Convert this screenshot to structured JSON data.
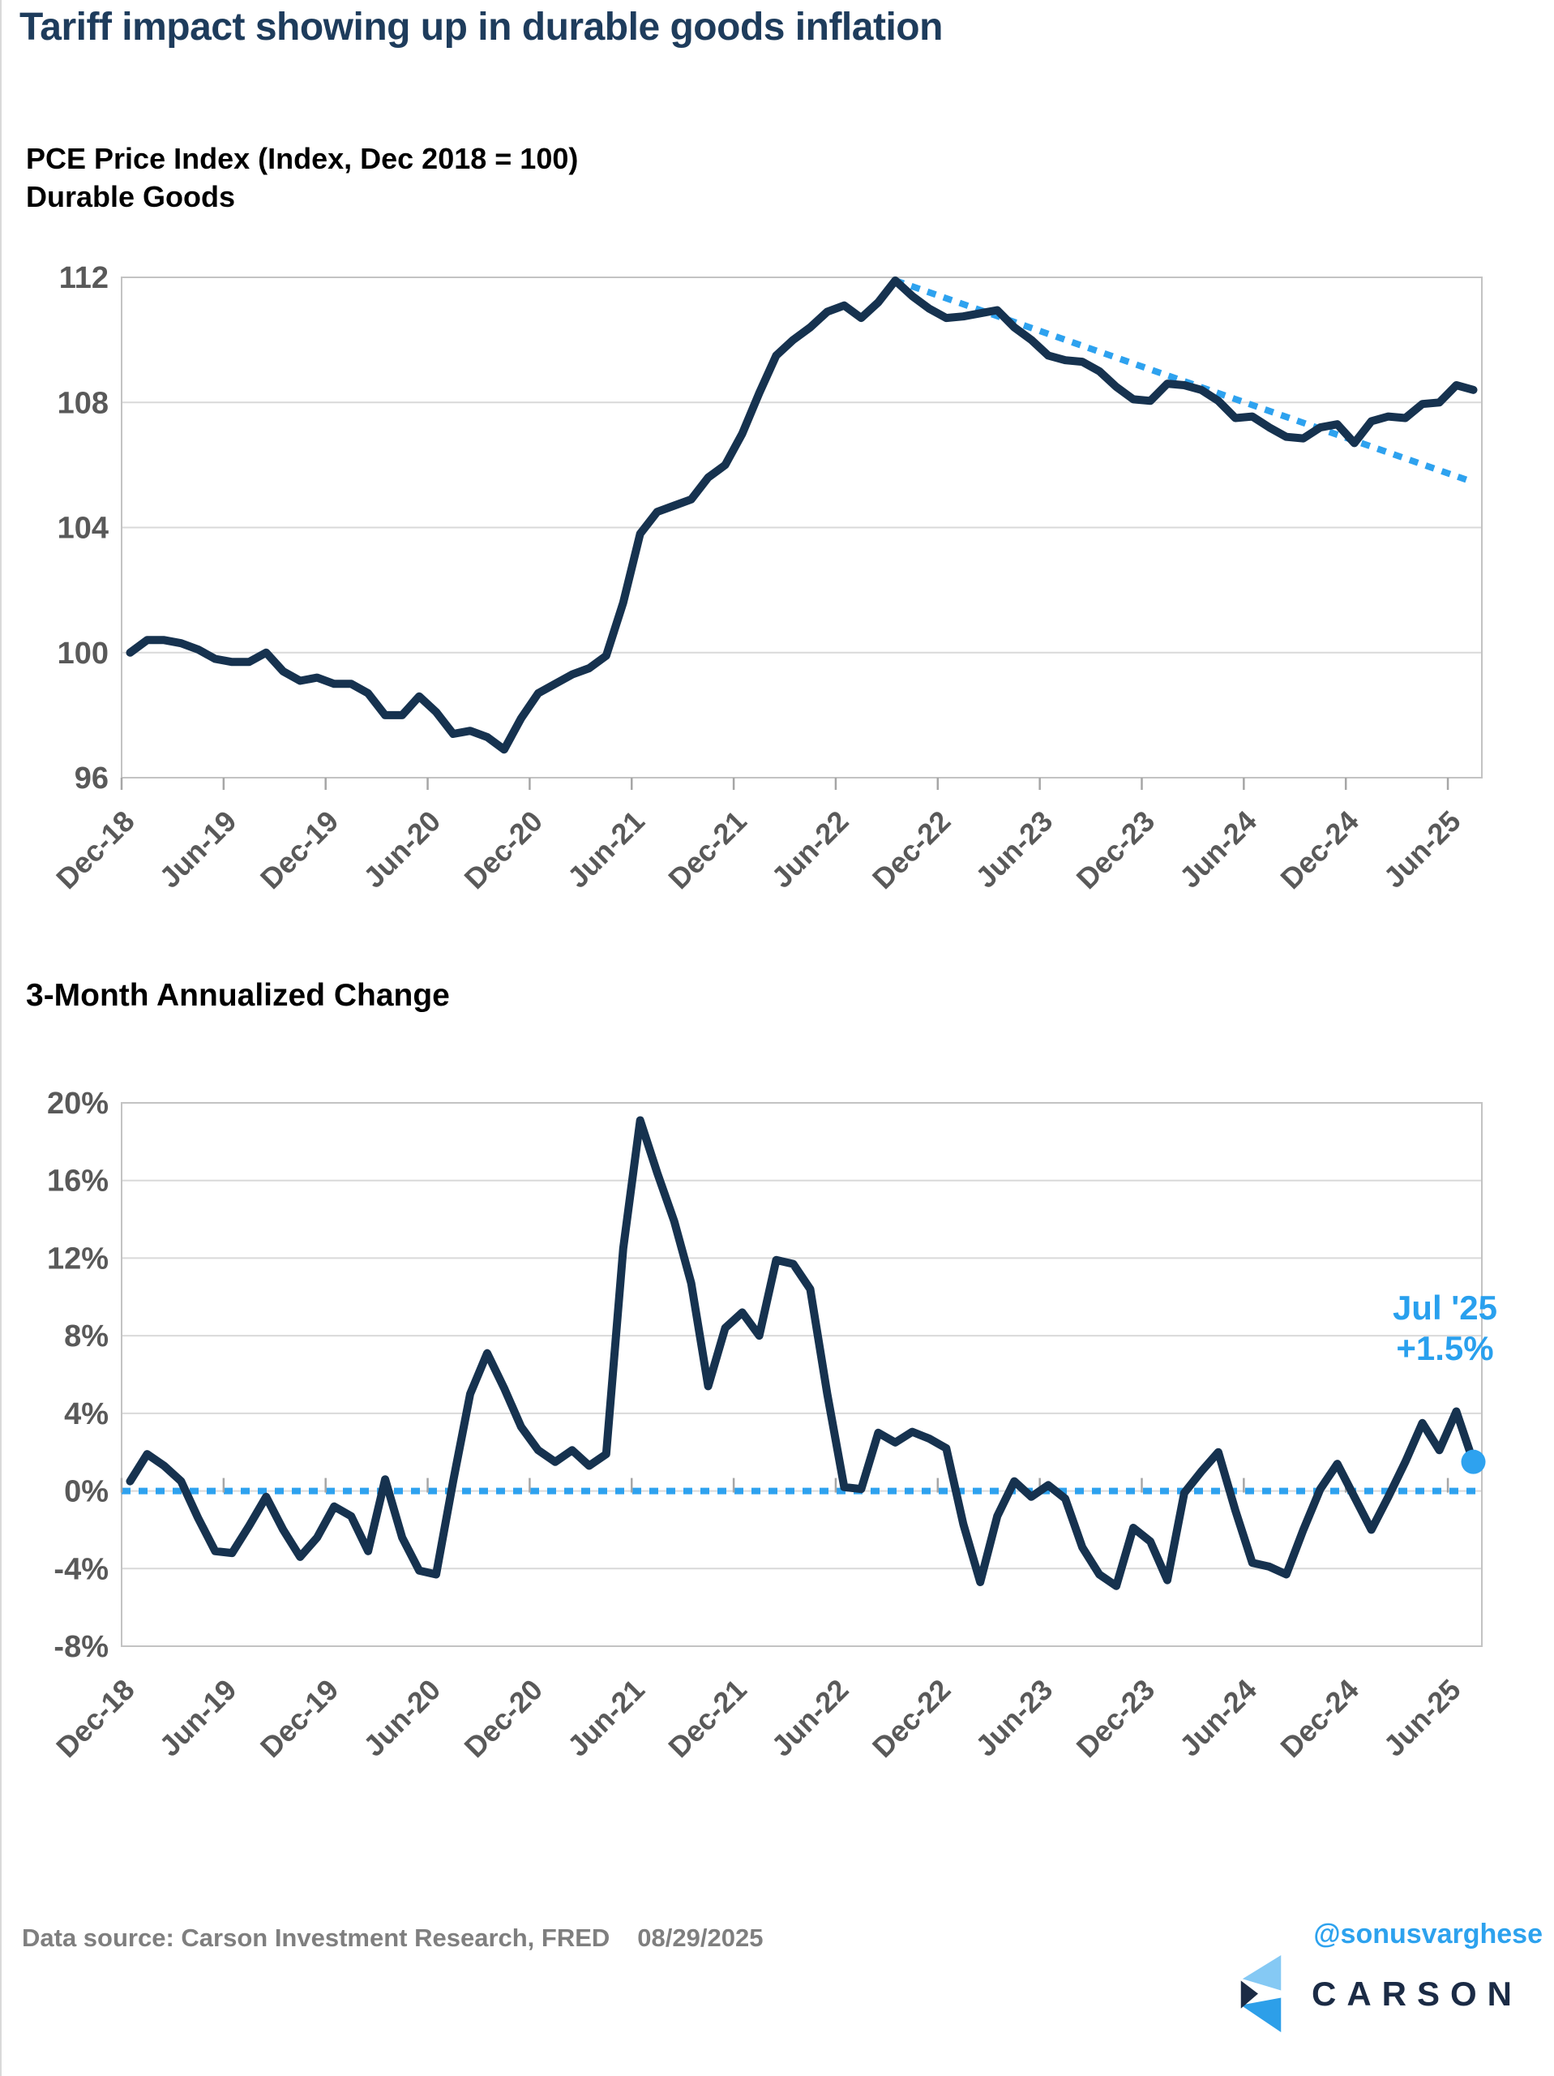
{
  "page": {
    "title": "Tariff impact showing up in durable goods inflation"
  },
  "colors": {
    "title_navy": "#1e3c5c",
    "series_line": "#16324f",
    "dotted_blue": "#2ea2ef",
    "annotation_blue": "#29a0ee",
    "axis_text_gray": "#595959",
    "footer_gray": "#7f7f7f",
    "gridline_gray": "#d9d9d9",
    "plot_border_gray": "#c3c3c3",
    "tick_gray": "#a6a6a6",
    "logo_light_blue": "#85c9f4",
    "logo_bright_blue": "#2d9fe9",
    "logo_navy": "#1b2b45"
  },
  "footer": {
    "source": "Data source: Carson Investment Research, FRED",
    "date": "08/29/2025",
    "handle": "@sonusvarghese"
  },
  "logo": {
    "wordmark": "CARSON"
  },
  "chart_data": [
    {
      "type": "line",
      "title_line1": "PCE Price Index (Index, Dec 2018 = 100)",
      "title_line2": "Durable Goods",
      "ylim": [
        96,
        112
      ],
      "yticks": [
        {
          "value": 112,
          "label": "112"
        },
        {
          "value": 108,
          "label": "108"
        },
        {
          "value": 104,
          "label": "104"
        },
        {
          "value": 100,
          "label": "100"
        },
        {
          "value": 96,
          "label": "96"
        }
      ],
      "xtick_step": 6,
      "xtick_labels": [
        "Dec-18",
        "Jun-19",
        "Dec-19",
        "Jun-20",
        "Dec-20",
        "Jun-21",
        "Dec-21",
        "Jun-22",
        "Dec-22",
        "Jun-23",
        "Dec-23",
        "Jun-24",
        "Dec-24",
        "Jun-25"
      ],
      "categories": [
        "Dec-18",
        "Jan-19",
        "Feb-19",
        "Mar-19",
        "Apr-19",
        "May-19",
        "Jun-19",
        "Jul-19",
        "Aug-19",
        "Sep-19",
        "Oct-19",
        "Nov-19",
        "Dec-19",
        "Jan-20",
        "Feb-20",
        "Mar-20",
        "Apr-20",
        "May-20",
        "Jun-20",
        "Jul-20",
        "Aug-20",
        "Sep-20",
        "Oct-20",
        "Nov-20",
        "Dec-20",
        "Jan-21",
        "Feb-21",
        "Mar-21",
        "Apr-21",
        "May-21",
        "Jun-21",
        "Jul-21",
        "Aug-21",
        "Sep-21",
        "Oct-21",
        "Nov-21",
        "Dec-21",
        "Jan-22",
        "Feb-22",
        "Mar-22",
        "Apr-22",
        "May-22",
        "Jun-22",
        "Jul-22",
        "Aug-22",
        "Sep-22",
        "Oct-22",
        "Nov-22",
        "Dec-22",
        "Jan-23",
        "Feb-23",
        "Mar-23",
        "Apr-23",
        "May-23",
        "Jun-23",
        "Jul-23",
        "Aug-23",
        "Sep-23",
        "Oct-23",
        "Nov-23",
        "Dec-23",
        "Jan-24",
        "Feb-24",
        "Mar-24",
        "Apr-24",
        "May-24",
        "Jun-24",
        "Jul-24",
        "Aug-24",
        "Sep-24",
        "Oct-24",
        "Nov-24",
        "Dec-24",
        "Jan-25",
        "Feb-25",
        "Mar-25",
        "Apr-25",
        "May-25",
        "Jun-25",
        "Jul-25"
      ],
      "values": [
        100.0,
        100.4,
        100.4,
        100.3,
        100.1,
        99.8,
        99.7,
        99.7,
        100.0,
        99.4,
        99.1,
        99.2,
        99.0,
        99.0,
        98.7,
        98.0,
        98.0,
        98.6,
        98.1,
        97.4,
        97.5,
        97.3,
        96.9,
        97.9,
        98.7,
        99.0,
        99.3,
        99.5,
        99.9,
        101.6,
        103.8,
        104.5,
        104.7,
        104.9,
        105.6,
        106.0,
        107.0,
        108.3,
        109.5,
        110.0,
        110.4,
        110.9,
        111.1,
        110.7,
        111.2,
        111.9,
        111.4,
        111.0,
        110.7,
        110.75,
        110.85,
        110.95,
        110.4,
        110.0,
        109.5,
        109.35,
        109.3,
        109.0,
        108.5,
        108.1,
        108.05,
        108.6,
        108.55,
        108.4,
        108.05,
        107.5,
        107.55,
        107.2,
        106.9,
        106.85,
        107.2,
        107.3,
        106.7,
        107.4,
        107.55,
        107.5,
        107.95,
        108.0,
        108.55,
        108.4
      ],
      "trend": {
        "start_label": "Sep-22",
        "start_index": 45,
        "start_value": 111.9,
        "end_label": "Jul-25",
        "end_index": 79,
        "end_value": 105.45
      },
      "ticks_below_axis": true
    },
    {
      "type": "line",
      "title": "3-Month Annualized Change",
      "unit": "%",
      "ylim": [
        -8,
        20
      ],
      "yticks": [
        {
          "value": 20,
          "label": "20%"
        },
        {
          "value": 16,
          "label": "16%"
        },
        {
          "value": 12,
          "label": "12%"
        },
        {
          "value": 8,
          "label": "8%"
        },
        {
          "value": 4,
          "label": "4%"
        },
        {
          "value": 0,
          "label": "0%"
        },
        {
          "value": -4,
          "label": "-4%"
        },
        {
          "value": -8,
          "label": "-8%"
        }
      ],
      "xtick_step": 6,
      "xtick_labels": [
        "Dec-18",
        "Jun-19",
        "Dec-19",
        "Jun-20",
        "Dec-20",
        "Jun-21",
        "Dec-21",
        "Jun-22",
        "Dec-22",
        "Jun-23",
        "Dec-23",
        "Jun-24",
        "Dec-24",
        "Jun-25"
      ],
      "categories": [
        "Dec-18",
        "Jan-19",
        "Feb-19",
        "Mar-19",
        "Apr-19",
        "May-19",
        "Jun-19",
        "Jul-19",
        "Aug-19",
        "Sep-19",
        "Oct-19",
        "Nov-19",
        "Dec-19",
        "Jan-20",
        "Feb-20",
        "Mar-20",
        "Apr-20",
        "May-20",
        "Jun-20",
        "Jul-20",
        "Aug-20",
        "Sep-20",
        "Oct-20",
        "Nov-20",
        "Dec-20",
        "Jan-21",
        "Feb-21",
        "Mar-21",
        "Apr-21",
        "May-21",
        "Jun-21",
        "Jul-21",
        "Aug-21",
        "Sep-21",
        "Oct-21",
        "Nov-21",
        "Dec-21",
        "Jan-22",
        "Feb-22",
        "Mar-22",
        "Apr-22",
        "May-22",
        "Jun-22",
        "Jul-22",
        "Aug-22",
        "Sep-22",
        "Oct-22",
        "Nov-22",
        "Dec-22",
        "Jan-23",
        "Feb-23",
        "Mar-23",
        "Apr-23",
        "May-23",
        "Jun-23",
        "Jul-23",
        "Aug-23",
        "Sep-23",
        "Oct-23",
        "Nov-23",
        "Dec-23",
        "Jan-24",
        "Feb-24",
        "Mar-24",
        "Apr-24",
        "May-24",
        "Jun-24",
        "Jul-24",
        "Aug-24",
        "Sep-24",
        "Oct-24",
        "Nov-24",
        "Dec-24",
        "Jan-25",
        "Feb-25",
        "Mar-25",
        "Apr-25",
        "May-25",
        "Jun-25",
        "Jul-25"
      ],
      "values": [
        0.5,
        1.9,
        1.3,
        0.5,
        -1.4,
        -3.1,
        -3.2,
        -1.8,
        -0.3,
        -2.0,
        -3.4,
        -2.4,
        -0.8,
        -1.3,
        -3.1,
        0.6,
        -2.4,
        -4.1,
        -4.3,
        0.5,
        5.0,
        7.1,
        5.3,
        3.3,
        2.1,
        1.5,
        2.1,
        1.3,
        1.9,
        12.5,
        19.1,
        16.4,
        13.9,
        10.7,
        5.4,
        8.4,
        9.2,
        8.0,
        11.9,
        11.7,
        10.4,
        5.0,
        0.2,
        0.1,
        3.0,
        2.5,
        3.05,
        2.7,
        2.2,
        -1.7,
        -4.7,
        -1.3,
        0.5,
        -0.3,
        0.3,
        -0.4,
        -2.9,
        -4.3,
        -4.9,
        -1.9,
        -2.6,
        -4.6,
        -0.1,
        1.0,
        2.0,
        -1.0,
        -3.7,
        -3.9,
        -4.3,
        -2.0,
        0.1,
        1.4,
        -0.3,
        -2.0,
        -0.3,
        1.5,
        3.5,
        2.1,
        4.1,
        1.5
      ],
      "zero_line": true,
      "ticks_at_zero": true,
      "end_dot": {
        "label": "Jul '25",
        "value_label": "+1.5%",
        "value": 1.5
      },
      "annotation": {
        "line1": "Jul '25",
        "line2": "+1.5%"
      }
    }
  ]
}
